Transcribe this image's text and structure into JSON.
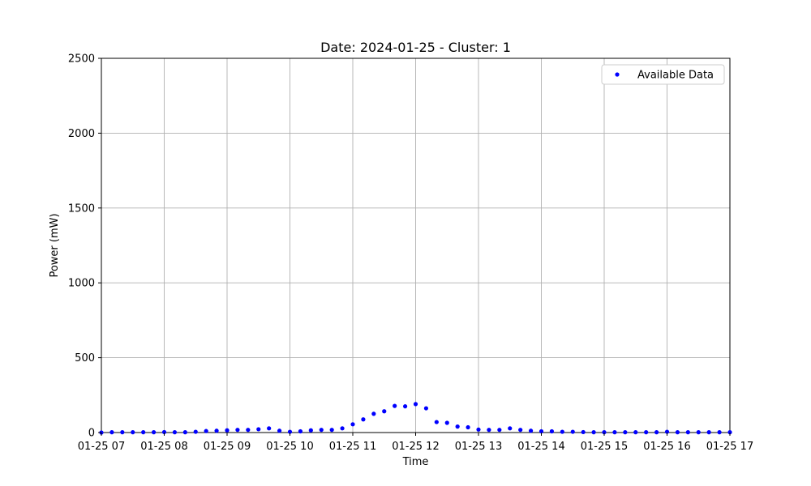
{
  "chart_data": {
    "type": "scatter",
    "title": "Date: 2024-01-25 - Cluster: 1",
    "xlabel": "Time",
    "ylabel": "Power (mW)",
    "xlim": [
      "2024-01-25 07:00",
      "2024-01-25 17:00"
    ],
    "ylim": [
      0,
      2500
    ],
    "x_ticks": [
      "01-25 07",
      "01-25 08",
      "01-25 09",
      "01-25 10",
      "01-25 11",
      "01-25 12",
      "01-25 13",
      "01-25 14",
      "01-25 15",
      "01-25 16",
      "01-25 17"
    ],
    "y_ticks": [
      "0",
      "500",
      "1000",
      "1500",
      "2000",
      "2500"
    ],
    "grid": true,
    "legend_position": "top-right",
    "series": [
      {
        "name": "Available Data",
        "color": "#0000ff",
        "marker": "circle",
        "points": [
          [
            "2024-01-25 07:00",
            0
          ],
          [
            "2024-01-25 07:10",
            2
          ],
          [
            "2024-01-25 07:20",
            2
          ],
          [
            "2024-01-25 07:30",
            2
          ],
          [
            "2024-01-25 07:40",
            2
          ],
          [
            "2024-01-25 07:50",
            2
          ],
          [
            "2024-01-25 08:00",
            3
          ],
          [
            "2024-01-25 08:10",
            2
          ],
          [
            "2024-01-25 08:20",
            2
          ],
          [
            "2024-01-25 08:30",
            5
          ],
          [
            "2024-01-25 08:40",
            10
          ],
          [
            "2024-01-25 08:50",
            12
          ],
          [
            "2024-01-25 09:00",
            15
          ],
          [
            "2024-01-25 09:10",
            18
          ],
          [
            "2024-01-25 09:20",
            18
          ],
          [
            "2024-01-25 09:30",
            22
          ],
          [
            "2024-01-25 09:40",
            28
          ],
          [
            "2024-01-25 09:50",
            12
          ],
          [
            "2024-01-25 10:00",
            5
          ],
          [
            "2024-01-25 10:10",
            8
          ],
          [
            "2024-01-25 10:20",
            15
          ],
          [
            "2024-01-25 10:30",
            18
          ],
          [
            "2024-01-25 10:40",
            18
          ],
          [
            "2024-01-25 10:50",
            28
          ],
          [
            "2024-01-25 11:00",
            55
          ],
          [
            "2024-01-25 11:10",
            88
          ],
          [
            "2024-01-25 11:20",
            125
          ],
          [
            "2024-01-25 11:30",
            142
          ],
          [
            "2024-01-25 11:40",
            178
          ],
          [
            "2024-01-25 11:50",
            175
          ],
          [
            "2024-01-25 12:00",
            190
          ],
          [
            "2024-01-25 12:10",
            162
          ],
          [
            "2024-01-25 12:20",
            70
          ],
          [
            "2024-01-25 12:30",
            65
          ],
          [
            "2024-01-25 12:40",
            40
          ],
          [
            "2024-01-25 12:50",
            35
          ],
          [
            "2024-01-25 13:00",
            20
          ],
          [
            "2024-01-25 13:10",
            18
          ],
          [
            "2024-01-25 13:20",
            18
          ],
          [
            "2024-01-25 13:30",
            28
          ],
          [
            "2024-01-25 13:40",
            18
          ],
          [
            "2024-01-25 13:50",
            12
          ],
          [
            "2024-01-25 14:00",
            8
          ],
          [
            "2024-01-25 14:10",
            8
          ],
          [
            "2024-01-25 14:20",
            5
          ],
          [
            "2024-01-25 14:30",
            5
          ],
          [
            "2024-01-25 14:40",
            3
          ],
          [
            "2024-01-25 14:50",
            2
          ],
          [
            "2024-01-25 15:00",
            2
          ],
          [
            "2024-01-25 15:10",
            2
          ],
          [
            "2024-01-25 15:20",
            2
          ],
          [
            "2024-01-25 15:30",
            2
          ],
          [
            "2024-01-25 15:40",
            2
          ],
          [
            "2024-01-25 15:50",
            2
          ],
          [
            "2024-01-25 16:00",
            5
          ],
          [
            "2024-01-25 16:10",
            2
          ],
          [
            "2024-01-25 16:20",
            2
          ],
          [
            "2024-01-25 16:30",
            2
          ],
          [
            "2024-01-25 16:40",
            2
          ],
          [
            "2024-01-25 16:50",
            2
          ],
          [
            "2024-01-25 17:00",
            2
          ]
        ]
      }
    ]
  }
}
